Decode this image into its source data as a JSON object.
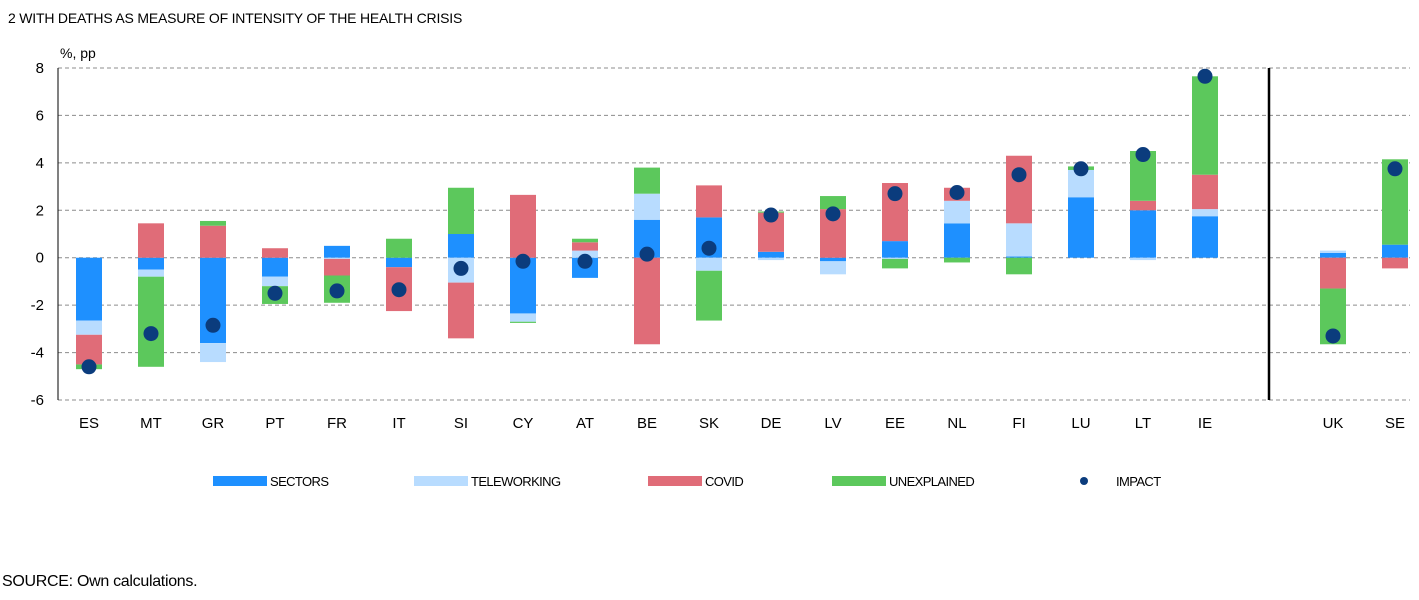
{
  "title": "2  WITH DEATHS AS MEASURE OF INTENSITY OF THE HEALTH CRISIS",
  "source": "SOURCE: Own calculations.",
  "colors": {
    "sectors": "#1e90ff",
    "teleworking": "#b8dcff",
    "covid": "#e06c78",
    "unexplained": "#5cc85c",
    "impact": "#0b3c7d"
  },
  "chart_data": {
    "type": "bar",
    "stacked": true,
    "ylabel": "%, pp",
    "ylim": [
      -6,
      8
    ],
    "yticks": [
      -6,
      -4,
      -2,
      0,
      2,
      4,
      6,
      8
    ],
    "grid": true,
    "categories": [
      "ES",
      "MT",
      "GR",
      "PT",
      "FR",
      "IT",
      "SI",
      "CY",
      "AT",
      "BE",
      "SK",
      "DE",
      "LV",
      "EE",
      "NL",
      "FI",
      "LU",
      "LT",
      "IE",
      "UK",
      "SE"
    ],
    "separator_after": "IE",
    "legend_position": "bottom",
    "series": [
      {
        "name": "SECTORS",
        "key": "sectors",
        "values": [
          -2.65,
          -0.5,
          -3.6,
          -0.8,
          0.5,
          -0.4,
          1.0,
          -2.35,
          -0.85,
          1.6,
          1.7,
          0.25,
          -0.15,
          0.7,
          1.45,
          0.05,
          2.55,
          2.0,
          1.75,
          0.2,
          0.55
        ]
      },
      {
        "name": "TELEWORKING",
        "key": "teleworking",
        "values": [
          -0.6,
          -0.3,
          -0.8,
          -0.4,
          -0.05,
          0.0,
          -1.05,
          -0.35,
          0.3,
          1.1,
          -0.55,
          -0.1,
          -0.55,
          -0.05,
          0.95,
          1.4,
          1.15,
          -0.1,
          0.3,
          0.1,
          0.0
        ]
      },
      {
        "name": "COVID",
        "key": "covid",
        "values": [
          -1.25,
          1.45,
          1.35,
          0.4,
          -0.7,
          -1.85,
          -2.35,
          2.65,
          0.35,
          -3.65,
          1.35,
          1.65,
          2.05,
          2.45,
          0.55,
          2.85,
          0.0,
          0.4,
          1.45,
          -1.3,
          -0.45
        ]
      },
      {
        "name": "UNEXPLAINED",
        "key": "unexplained",
        "values": [
          -0.2,
          -3.8,
          0.2,
          -0.75,
          -1.15,
          0.8,
          1.95,
          -0.05,
          0.15,
          1.1,
          -2.1,
          0.05,
          0.55,
          -0.4,
          -0.2,
          -0.7,
          0.15,
          2.1,
          4.15,
          -2.35,
          3.6
        ]
      }
    ],
    "impact": {
      "name": "IMPACT",
      "key": "impact",
      "values": [
        -4.6,
        -3.2,
        -2.85,
        -1.5,
        -1.4,
        -1.35,
        -0.45,
        -0.15,
        -0.15,
        0.15,
        0.4,
        1.8,
        1.85,
        2.7,
        2.75,
        3.5,
        3.75,
        4.35,
        7.65,
        -3.3,
        3.75
      ]
    }
  }
}
